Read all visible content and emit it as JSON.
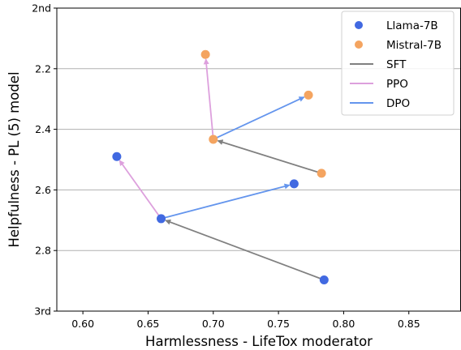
{
  "chart_data": {
    "type": "scatter",
    "xlabel": "Harmlessness - LifeTox moderator",
    "ylabel": "Helpfulness - PL (5) model",
    "xlim": [
      0.58,
      0.89
    ],
    "ylim": [
      3.0,
      2.0
    ],
    "y_inverted": true,
    "xticks": [
      {
        "value": 0.6,
        "label": "0.60"
      },
      {
        "value": 0.65,
        "label": "0.65"
      },
      {
        "value": 0.7,
        "label": "0.70"
      },
      {
        "value": 0.75,
        "label": "0.75"
      },
      {
        "value": 0.8,
        "label": "0.80"
      },
      {
        "value": 0.85,
        "label": "0.85"
      }
    ],
    "yticks": [
      {
        "value": 2.0,
        "label": "2nd"
      },
      {
        "value": 2.2,
        "label": "2.2"
      },
      {
        "value": 2.4,
        "label": "2.4"
      },
      {
        "value": 2.6,
        "label": "2.6"
      },
      {
        "value": 2.8,
        "label": "2.8"
      },
      {
        "value": 3.0,
        "label": "3rd"
      }
    ],
    "grid": "horizontal",
    "legend_position": "top-right",
    "legend": [
      {
        "kind": "marker",
        "label": "Llama-7B",
        "color": "#4169e1"
      },
      {
        "kind": "marker",
        "label": "Mistral-7B",
        "color": "#f4a460"
      },
      {
        "kind": "line",
        "label": "SFT",
        "color": "#808080"
      },
      {
        "kind": "line",
        "label": "PPO",
        "color": "#dda0dd"
      },
      {
        "kind": "line",
        "label": "DPO",
        "color": "#6495ed"
      }
    ],
    "series": [
      {
        "name": "Llama-7B",
        "color": "#4169e1",
        "points": [
          {
            "x": 0.785,
            "y": 2.897
          },
          {
            "x": 0.66,
            "y": 2.695
          },
          {
            "x": 0.626,
            "y": 2.49
          },
          {
            "x": 0.762,
            "y": 2.58
          }
        ]
      },
      {
        "name": "Mistral-7B",
        "color": "#f4a460",
        "points": [
          {
            "x": 0.783,
            "y": 2.545
          },
          {
            "x": 0.7,
            "y": 2.433
          },
          {
            "x": 0.694,
            "y": 2.153
          },
          {
            "x": 0.773,
            "y": 2.287
          }
        ]
      }
    ],
    "arrows": [
      {
        "method": "SFT",
        "color": "#808080",
        "from": [
          0.785,
          2.897
        ],
        "to": [
          0.66,
          2.695
        ]
      },
      {
        "method": "PPO",
        "color": "#dda0dd",
        "from": [
          0.66,
          2.695
        ],
        "to": [
          0.626,
          2.49
        ]
      },
      {
        "method": "DPO",
        "color": "#6495ed",
        "from": [
          0.66,
          2.695
        ],
        "to": [
          0.762,
          2.58
        ]
      },
      {
        "method": "SFT",
        "color": "#808080",
        "from": [
          0.783,
          2.545
        ],
        "to": [
          0.7,
          2.433
        ]
      },
      {
        "method": "PPO",
        "color": "#dda0dd",
        "from": [
          0.7,
          2.433
        ],
        "to": [
          0.694,
          2.153
        ]
      },
      {
        "method": "DPO",
        "color": "#6495ed",
        "from": [
          0.7,
          2.433
        ],
        "to": [
          0.773,
          2.287
        ]
      }
    ]
  }
}
